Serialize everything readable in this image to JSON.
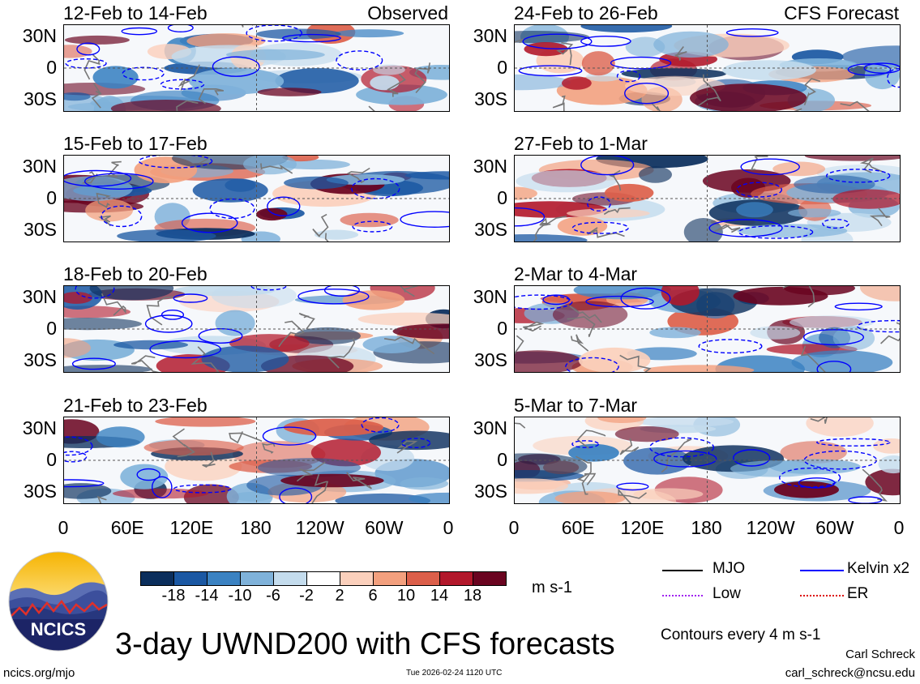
{
  "left_header": "Observed",
  "right_header": "CFS Forecast",
  "lat_labels": [
    "30N",
    "0",
    "30S"
  ],
  "lon_labels": [
    "0",
    "60E",
    "120E",
    "180",
    "120W",
    "60W",
    "0"
  ],
  "colorbar": {
    "levels": [
      "-18",
      "-14",
      "-10",
      "-6",
      "-2",
      "2",
      "6",
      "10",
      "14",
      "18"
    ],
    "colors": [
      "#0b2e5c",
      "#1b58a3",
      "#3b82c2",
      "#7fb2da",
      "#c4dced",
      "#ffffff",
      "#fbd0bc",
      "#f3a07e",
      "#dc5f4a",
      "#b2182b",
      "#6a0420"
    ],
    "units": "m s-1"
  },
  "legend": {
    "items": [
      {
        "name": "MJO",
        "color": "#000000",
        "style": "solid"
      },
      {
        "name": "Kelvin x2",
        "color": "#0000ff",
        "style": "solid"
      },
      {
        "name": "Low",
        "color": "#a020f0",
        "style": "dotted"
      },
      {
        "name": "ER",
        "color": "#dd0000",
        "style": "dotted"
      }
    ],
    "note": "Contours every 4 m s-1"
  },
  "logo_text": "NCICS",
  "main_title": "3-day UWND200 with CFS forecasts",
  "footer": {
    "url": "ncics.org/mjo",
    "timestamp": "Tue 2026-02-24 1120 UTC",
    "author": "Carl Schreck",
    "email": "carl_schreck@ncsu.edu"
  },
  "chart_data": {
    "type": "heatmap",
    "variable": "200-hPa zonal wind anomaly (UWND200), 3-day means",
    "units": "m s-1",
    "x_axis": {
      "ticks": [
        "0",
        "60E",
        "120E",
        "180",
        "120W",
        "60W",
        "0"
      ],
      "range_deg_east": [
        0,
        360
      ]
    },
    "y_axis": {
      "ticks": [
        "30N",
        "0",
        "30S"
      ],
      "range_deg": [
        -40,
        40
      ]
    },
    "contour_interval": "4 m s-1",
    "panels": [
      {
        "id": "p1",
        "period": "12-Feb to 14-Feb",
        "source": "Observed",
        "column": "left",
        "row": 0
      },
      {
        "id": "p2",
        "period": "15-Feb to 17-Feb",
        "source": "Observed",
        "column": "left",
        "row": 1
      },
      {
        "id": "p3",
        "period": "18-Feb to 20-Feb",
        "source": "Observed",
        "column": "left",
        "row": 2
      },
      {
        "id": "p4",
        "period": "21-Feb to 23-Feb",
        "source": "Observed",
        "column": "left",
        "row": 3
      },
      {
        "id": "p5",
        "period": "24-Feb to 26-Feb",
        "source": "CFS Forecast",
        "column": "right",
        "row": 0
      },
      {
        "id": "p6",
        "period": "27-Feb to 1-Mar",
        "source": "CFS Forecast",
        "column": "right",
        "row": 1
      },
      {
        "id": "p7",
        "period": "2-Mar to 4-Mar",
        "source": "CFS Forecast",
        "column": "right",
        "row": 2
      },
      {
        "id": "p8",
        "period": "5-Mar to 7-Mar",
        "source": "CFS Forecast",
        "column": "right",
        "row": 3
      }
    ]
  }
}
